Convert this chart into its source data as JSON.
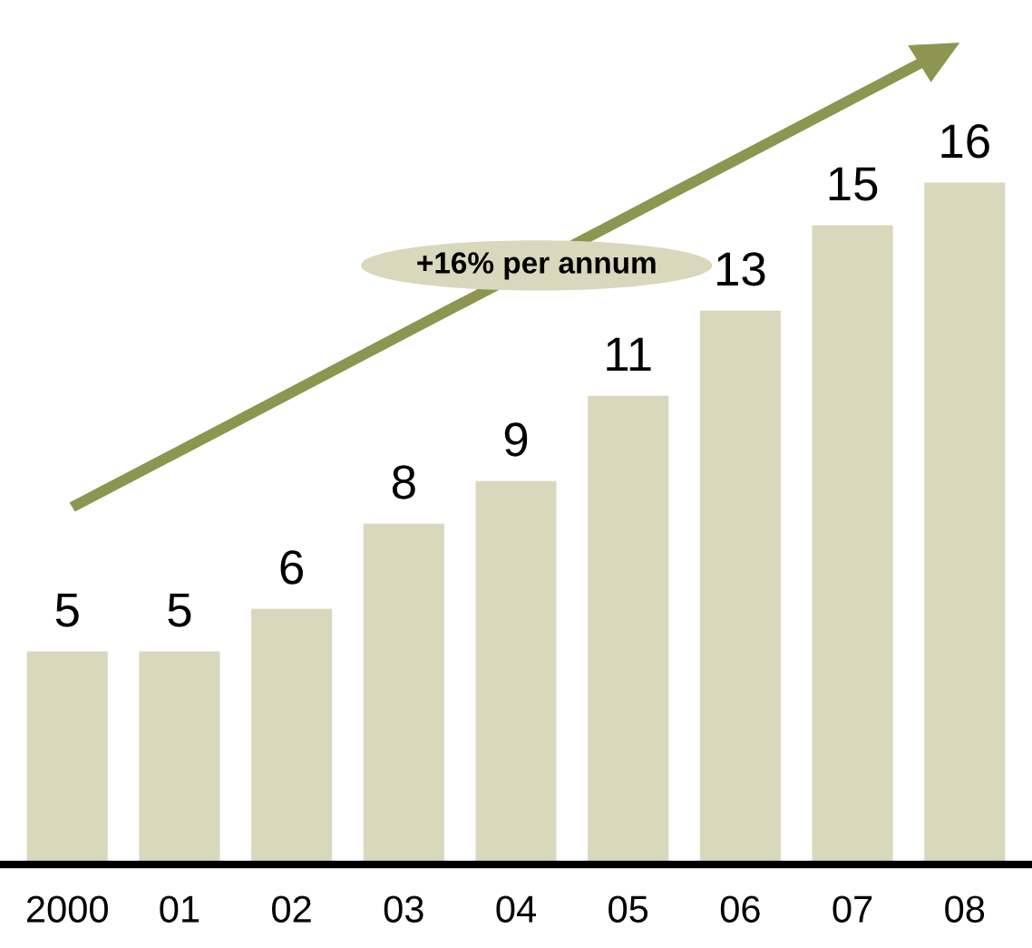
{
  "chart_data": {
    "type": "bar",
    "categories": [
      "2000",
      "01",
      "02",
      "03",
      "04",
      "05",
      "06",
      "07",
      "08"
    ],
    "values": [
      5,
      5,
      6,
      8,
      9,
      11,
      13,
      15,
      16
    ],
    "color": "#d9d7bc",
    "data_labels": true,
    "grid": false,
    "annotations": [
      "+16% per annum"
    ]
  }
}
